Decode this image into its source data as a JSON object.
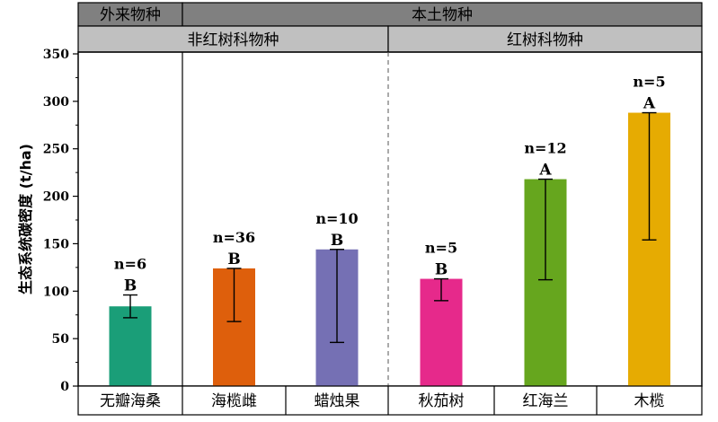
{
  "header": {
    "top": [
      {
        "label": "外来物种",
        "from": 0,
        "to": 1
      },
      {
        "label": "本土物种",
        "from": 1,
        "to": 6
      }
    ],
    "middle": [
      {
        "label": "非红树科物种",
        "from": 0,
        "to": 3
      },
      {
        "label": "红树科物种",
        "from": 3,
        "to": 6
      }
    ]
  },
  "chart_data": {
    "type": "bar",
    "ylabel": "生态系统碳密度 (t/ha)",
    "ylim": [
      0,
      350
    ],
    "yticks": [
      0,
      50,
      100,
      150,
      200,
      250,
      300,
      350
    ],
    "grid": false,
    "categories": [
      "无瓣海桑",
      "海榄雌",
      "蜡烛果",
      "秋茄树",
      "红海兰",
      "木榄"
    ],
    "values": [
      84,
      124,
      144,
      113,
      218,
      288
    ],
    "error_low": [
      72,
      68,
      46,
      90,
      112,
      154
    ],
    "error_high": [
      96,
      124,
      144,
      113,
      218,
      288
    ],
    "n_labels": [
      "n=6",
      "n=36",
      "n=10",
      "n=5",
      "n=12",
      "n=5"
    ],
    "group_letters": [
      "B",
      "B",
      "B",
      "B",
      "A",
      "A"
    ],
    "colors": [
      "#1a9e78",
      "#de5f0c",
      "#7570b4",
      "#e6298b",
      "#66a61e",
      "#e6ab02"
    ],
    "separators": [
      {
        "after_index": 0,
        "style": "solid"
      },
      {
        "after_index": 2,
        "style": "dashed"
      }
    ]
  }
}
